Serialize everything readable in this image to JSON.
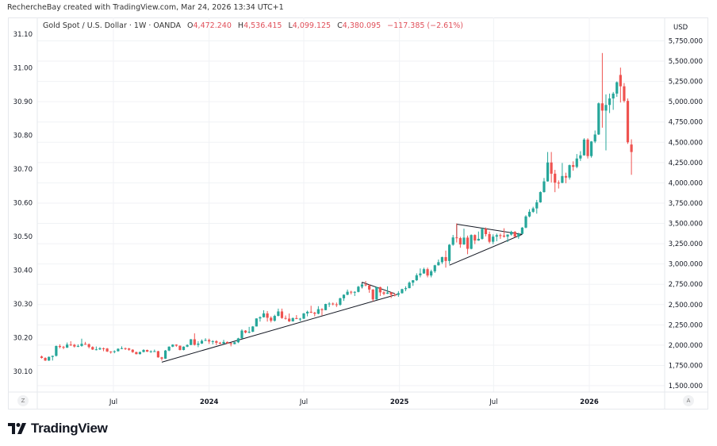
{
  "credit": "RechercheBay created with TradingView.com, Mar 24, 2026 13:34 UTC+1",
  "legend": {
    "symbol": "Gold Spot / U.S. Dollar · 1W · OANDA",
    "o_label": "O",
    "o": "4,472.240",
    "h_label": "H",
    "h": "4,536.415",
    "l_label": "L",
    "l": "4,099.125",
    "c_label": "C",
    "c": "4,380.095",
    "change": "−117.385 (−2.61%)"
  },
  "corner_left": "Z",
  "corner_right": "A",
  "logo_text": "TradingView",
  "colors": {
    "up": "#26a69a",
    "down": "#ef5350",
    "grid": "#f0f2f5",
    "drawing": "#131722"
  },
  "chart_data": {
    "type": "candlestick",
    "interval": "weekly",
    "start_week": "2023-02-13",
    "currency": "USD",
    "ylim": [
      1500,
      5750
    ],
    "grid": true,
    "right_axis_ticks": [
      "1,500.000",
      "1,750.000",
      "2,000.000",
      "2,250.000",
      "2,500.000",
      "2,750.000",
      "3,000.000",
      "3,250.000",
      "3,500.000",
      "3,750.000",
      "4,000.000",
      "4,250.000",
      "4,500.000",
      "4,750.000",
      "5,000.000",
      "5,250.000",
      "5,500.000",
      "5,750.000"
    ],
    "right_axis_values": [
      1500,
      1750,
      2000,
      2250,
      2500,
      2750,
      3000,
      3250,
      3500,
      3750,
      4000,
      4250,
      4500,
      4750,
      5000,
      5250,
      5500,
      5750
    ],
    "left_axis_ticks": [
      "30.10",
      "30.20",
      "30.30",
      "30.40",
      "30.50",
      "30.60",
      "30.70",
      "30.80",
      "30.90",
      "31.00",
      "31.10"
    ],
    "x_ticks": [
      {
        "label": "Jul",
        "date": "2023-07-01",
        "bold": false
      },
      {
        "label": "2024",
        "date": "2024-01-01",
        "bold": true
      },
      {
        "label": "Jul",
        "date": "2024-07-01",
        "bold": false
      },
      {
        "label": "2025",
        "date": "2025-01-01",
        "bold": true
      },
      {
        "label": "Jul",
        "date": "2025-07-01",
        "bold": false
      },
      {
        "label": "2026",
        "date": "2026-01-01",
        "bold": true
      }
    ],
    "ohlc": [
      [
        1860,
        1870,
        1835,
        1842
      ],
      [
        1842,
        1850,
        1805,
        1810
      ],
      [
        1810,
        1860,
        1805,
        1855
      ],
      [
        1855,
        1870,
        1810,
        1868
      ],
      [
        1868,
        1995,
        1860,
        1989
      ],
      [
        1989,
        2010,
        1960,
        1978
      ],
      [
        1978,
        1990,
        1950,
        1969
      ],
      [
        1969,
        2032,
        1965,
        2007
      ],
      [
        2007,
        2048,
        1990,
        2004
      ],
      [
        2004,
        2015,
        1970,
        1983
      ],
      [
        1983,
        2010,
        1975,
        1990
      ],
      [
        1990,
        2080,
        1980,
        2016
      ],
      [
        2016,
        2040,
        2005,
        2011
      ],
      [
        2011,
        2020,
        1960,
        1977
      ],
      [
        1977,
        1985,
        1940,
        1946
      ],
      [
        1946,
        1983,
        1935,
        1948
      ],
      [
        1948,
        1975,
        1940,
        1961
      ],
      [
        1961,
        1970,
        1925,
        1958
      ],
      [
        1958,
        1965,
        1915,
        1921
      ],
      [
        1921,
        1925,
        1895,
        1919
      ],
      [
        1919,
        1935,
        1900,
        1925
      ],
      [
        1925,
        1960,
        1920,
        1955
      ],
      [
        1955,
        1985,
        1950,
        1962
      ],
      [
        1962,
        1970,
        1940,
        1959
      ],
      [
        1959,
        1965,
        1930,
        1943
      ],
      [
        1943,
        1950,
        1905,
        1914
      ],
      [
        1914,
        1920,
        1885,
        1889
      ],
      [
        1889,
        1920,
        1885,
        1915
      ],
      [
        1915,
        1950,
        1910,
        1940
      ],
      [
        1940,
        1945,
        1915,
        1919
      ],
      [
        1919,
        1935,
        1905,
        1924
      ],
      [
        1924,
        1945,
        1920,
        1925
      ],
      [
        1925,
        1930,
        1845,
        1849
      ],
      [
        1849,
        1855,
        1810,
        1833
      ],
      [
        1833,
        1940,
        1830,
        1933
      ],
      [
        1933,
        1985,
        1925,
        1981
      ],
      [
        1981,
        2010,
        1975,
        2006
      ],
      [
        2006,
        2010,
        1980,
        1993
      ],
      [
        1993,
        1995,
        1935,
        1940
      ],
      [
        1940,
        1985,
        1935,
        1981
      ],
      [
        1981,
        2010,
        1975,
        2002
      ],
      [
        2002,
        2075,
        2000,
        2072
      ],
      [
        2072,
        2145,
        1995,
        2004
      ],
      [
        2004,
        2048,
        1975,
        2019
      ],
      [
        2019,
        2070,
        2015,
        2053
      ],
      [
        2053,
        2085,
        2050,
        2063
      ],
      [
        2063,
        2080,
        2015,
        2045
      ],
      [
        2045,
        2060,
        2010,
        2049
      ],
      [
        2049,
        2060,
        2000,
        2029
      ],
      [
        2029,
        2040,
        2010,
        2018
      ],
      [
        2018,
        2065,
        2015,
        2039
      ],
      [
        2039,
        2045,
        2015,
        2024
      ],
      [
        2024,
        2030,
        1985,
        2013
      ],
      [
        2013,
        2040,
        2010,
        2035
      ],
      [
        2035,
        2090,
        2025,
        2083
      ],
      [
        2083,
        2195,
        2080,
        2179
      ],
      [
        2179,
        2185,
        2145,
        2155
      ],
      [
        2155,
        2225,
        2145,
        2165
      ],
      [
        2165,
        2235,
        2160,
        2230
      ],
      [
        2230,
        2330,
        2230,
        2329
      ],
      [
        2329,
        2355,
        2290,
        2344
      ],
      [
        2344,
        2430,
        2340,
        2391
      ],
      [
        2391,
        2420,
        2290,
        2337
      ],
      [
        2337,
        2355,
        2280,
        2301
      ],
      [
        2301,
        2375,
        2290,
        2360
      ],
      [
        2360,
        2450,
        2355,
        2415
      ],
      [
        2415,
        2450,
        2325,
        2334
      ],
      [
        2334,
        2365,
        2315,
        2327
      ],
      [
        2327,
        2390,
        2285,
        2293
      ],
      [
        2293,
        2340,
        2290,
        2333
      ],
      [
        2333,
        2370,
        2320,
        2322
      ],
      [
        2322,
        2335,
        2295,
        2326
      ],
      [
        2326,
        2395,
        2320,
        2391
      ],
      [
        2391,
        2425,
        2355,
        2411
      ],
      [
        2411,
        2485,
        2395,
        2400
      ],
      [
        2400,
        2410,
        2355,
        2387
      ],
      [
        2387,
        2480,
        2380,
        2443
      ],
      [
        2443,
        2455,
        2365,
        2431
      ],
      [
        2431,
        2510,
        2430,
        2507
      ],
      [
        2507,
        2530,
        2470,
        2512
      ],
      [
        2512,
        2525,
        2490,
        2503
      ],
      [
        2503,
        2525,
        2470,
        2497
      ],
      [
        2497,
        2585,
        2485,
        2577
      ],
      [
        2577,
        2625,
        2545,
        2621
      ],
      [
        2621,
        2685,
        2615,
        2658
      ],
      [
        2658,
        2670,
        2625,
        2653
      ],
      [
        2653,
        2665,
        2605,
        2656
      ],
      [
        2656,
        2730,
        2650,
        2720
      ],
      [
        2720,
        2758,
        2710,
        2747
      ],
      [
        2747,
        2790,
        2725,
        2736
      ],
      [
        2736,
        2750,
        2645,
        2685
      ],
      [
        2685,
        2690,
        2540,
        2563
      ],
      [
        2563,
        2720,
        2560,
        2715
      ],
      [
        2715,
        2720,
        2605,
        2650
      ],
      [
        2650,
        2665,
        2615,
        2633
      ],
      [
        2633,
        2725,
        2630,
        2648
      ],
      [
        2648,
        2655,
        2580,
        2622
      ],
      [
        2622,
        2640,
        2600,
        2621
      ],
      [
        2621,
        2665,
        2595,
        2640
      ],
      [
        2640,
        2695,
        2635,
        2690
      ],
      [
        2690,
        2725,
        2665,
        2702
      ],
      [
        2702,
        2785,
        2700,
        2770
      ],
      [
        2770,
        2800,
        2730,
        2800
      ],
      [
        2800,
        2885,
        2790,
        2861
      ],
      [
        2861,
        2945,
        2835,
        2883
      ],
      [
        2883,
        2955,
        2880,
        2936
      ],
      [
        2936,
        2955,
        2835,
        2858
      ],
      [
        2858,
        2930,
        2835,
        2910
      ],
      [
        2910,
        2990,
        2890,
        2984
      ],
      [
        2984,
        3055,
        2980,
        3022
      ],
      [
        3022,
        3090,
        3000,
        3085
      ],
      [
        3085,
        3165,
        2955,
        3037
      ],
      [
        3037,
        3245,
        3000,
        3237
      ],
      [
        3237,
        3358,
        3225,
        3327
      ],
      [
        3327,
        3500,
        3265,
        3319
      ],
      [
        3319,
        3335,
        3200,
        3241
      ],
      [
        3241,
        3435,
        3235,
        3325
      ],
      [
        3325,
        3350,
        3120,
        3187
      ],
      [
        3187,
        3365,
        3180,
        3357
      ],
      [
        3357,
        3365,
        3245,
        3289
      ],
      [
        3289,
        3400,
        3285,
        3310
      ],
      [
        3310,
        3450,
        3300,
        3433
      ],
      [
        3433,
        3450,
        3340,
        3368
      ],
      [
        3368,
        3400,
        3255,
        3274
      ],
      [
        3274,
        3365,
        3245,
        3337
      ],
      [
        3337,
        3375,
        3280,
        3355
      ],
      [
        3355,
        3375,
        3310,
        3350
      ],
      [
        3350,
        3440,
        3325,
        3337
      ],
      [
        3337,
        3365,
        3270,
        3363
      ],
      [
        3363,
        3410,
        3350,
        3397
      ],
      [
        3397,
        3405,
        3330,
        3336
      ],
      [
        3336,
        3385,
        3310,
        3371
      ],
      [
        3371,
        3455,
        3365,
        3448
      ],
      [
        3448,
        3600,
        3440,
        3586
      ],
      [
        3586,
        3675,
        3575,
        3643
      ],
      [
        3643,
        3705,
        3630,
        3685
      ],
      [
        3685,
        3790,
        3620,
        3760
      ],
      [
        3760,
        3895,
        3755,
        3886
      ],
      [
        3886,
        4060,
        3880,
        4018
      ],
      [
        4018,
        4380,
        4015,
        4251
      ],
      [
        4251,
        4380,
        4005,
        4113
      ],
      [
        4113,
        4160,
        3885,
        4002
      ],
      [
        4002,
        4030,
        3930,
        4000
      ],
      [
        4000,
        4245,
        3995,
        4084
      ],
      [
        4084,
        4125,
        3995,
        4065
      ],
      [
        4065,
        4225,
        4040,
        4218
      ],
      [
        4218,
        4265,
        4150,
        4197
      ],
      [
        4197,
        4355,
        4180,
        4300
      ],
      [
        4300,
        4390,
        4270,
        4339
      ],
      [
        4339,
        4550,
        4335,
        4533
      ],
      [
        4533,
        4550,
        4300,
        4330
      ],
      [
        4330,
        4515,
        4310,
        4510
      ],
      [
        4510,
        4645,
        4490,
        4596
      ],
      [
        4596,
        4990,
        4590,
        4980
      ],
      [
        4980,
        5600,
        4680,
        4890
      ],
      [
        4890,
        5090,
        4400,
        4960
      ],
      [
        4960,
        5100,
        4860,
        5040
      ],
      [
        5040,
        5120,
        4900,
        5100
      ],
      [
        5100,
        5250,
        5060,
        5240
      ],
      [
        5330,
        5420,
        4990,
        5190
      ],
      [
        5190,
        5230,
        4990,
        5010
      ],
      [
        5010,
        5040,
        4480,
        4500
      ],
      [
        4472.24,
        4536.415,
        4099.125,
        4380.095
      ]
    ],
    "drawings": [
      {
        "type": "trendline",
        "points": [
          [
            "2023-10-02",
            1790
          ],
          [
            "2024-12-30",
            2630
          ]
        ]
      },
      {
        "type": "trendline",
        "points": [
          [
            "2024-10-21",
            2775
          ],
          [
            "2024-12-23",
            2635
          ]
        ]
      },
      {
        "type": "trendline",
        "points": [
          [
            "2024-10-21",
            2775
          ],
          [
            "2024-10-21",
            2700
          ]
        ]
      },
      {
        "type": "trendline",
        "points": [
          [
            "2025-04-07",
            2985
          ],
          [
            "2025-08-25",
            3365
          ]
        ]
      },
      {
        "type": "trendline",
        "points": [
          [
            "2025-04-21",
            3490
          ],
          [
            "2025-08-25",
            3365
          ]
        ]
      },
      {
        "type": "trendline",
        "points": [
          [
            "2025-04-21",
            3490
          ],
          [
            "2025-04-21",
            3320
          ]
        ]
      }
    ]
  }
}
